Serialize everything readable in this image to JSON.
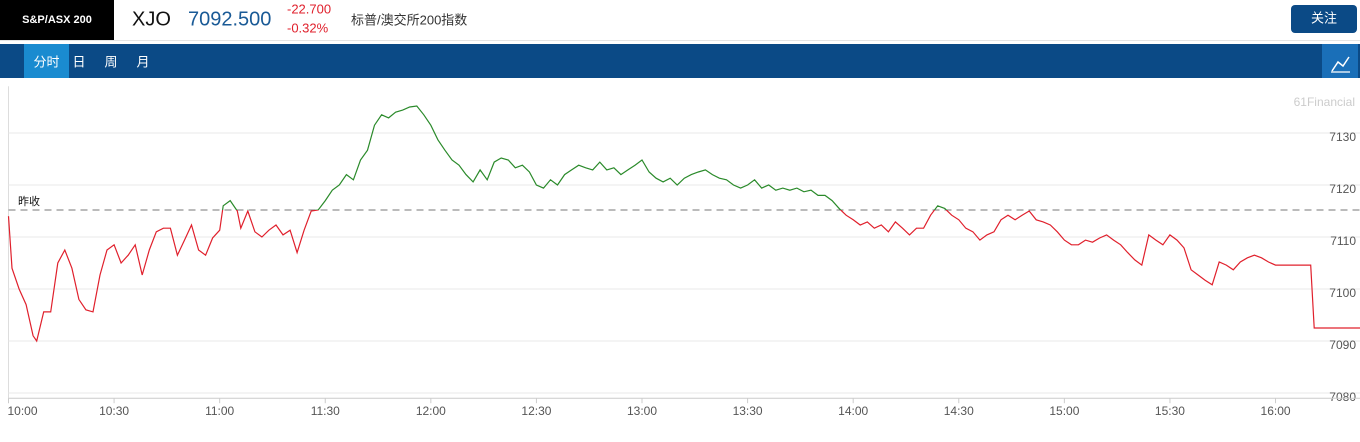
{
  "header": {
    "index_name": "S&P/ASX 200",
    "symbol": "XJO",
    "price": "7092.500",
    "change": "-22.700",
    "change_pct": "-0.32%",
    "description": "标普/澳交所200指数",
    "follow_button": "关注"
  },
  "tabs": [
    "分时",
    "日",
    "周",
    "月"
  ],
  "watermark": "61Financial",
  "chart_data": {
    "type": "line",
    "reference_label": "昨收",
    "prev_close": 7115.2,
    "up_color": "#2a8a2a",
    "down_color": "#e0202c",
    "xlim": [
      "10:00",
      "16:24"
    ],
    "xticks": [
      "10:00",
      "10:30",
      "11:00",
      "11:30",
      "12:00",
      "12:30",
      "13:00",
      "13:30",
      "14:00",
      "14:30",
      "15:00",
      "15:30",
      "16:00"
    ],
    "ylim": [
      7079,
      7139
    ],
    "yticks": [
      7080,
      7090,
      7100,
      7110,
      7120,
      7130
    ],
    "grid": true,
    "x": [
      "10:00",
      "10:01",
      "10:03",
      "10:05",
      "10:07",
      "10:08",
      "10:10",
      "10:12",
      "10:14",
      "10:16",
      "10:18",
      "10:20",
      "10:22",
      "10:24",
      "10:26",
      "10:28",
      "10:30",
      "10:32",
      "10:34",
      "10:36",
      "10:38",
      "10:40",
      "10:42",
      "10:44",
      "10:46",
      "10:48",
      "10:50",
      "10:52",
      "10:54",
      "10:56",
      "10:58",
      "11:00",
      "11:01",
      "11:03",
      "11:05",
      "11:06",
      "11:08",
      "11:10",
      "11:12",
      "11:14",
      "11:16",
      "11:18",
      "11:20",
      "11:22",
      "11:24",
      "11:26",
      "11:28",
      "11:30",
      "11:32",
      "11:34",
      "11:36",
      "11:38",
      "11:40",
      "11:42",
      "11:44",
      "11:46",
      "11:48",
      "11:50",
      "11:52",
      "11:54",
      "11:56",
      "11:58",
      "12:00",
      "12:02",
      "12:04",
      "12:06",
      "12:08",
      "12:10",
      "12:12",
      "12:14",
      "12:16",
      "12:18",
      "12:20",
      "12:22",
      "12:24",
      "12:26",
      "12:28",
      "12:30",
      "12:32",
      "12:34",
      "12:36",
      "12:38",
      "12:40",
      "12:42",
      "12:44",
      "12:46",
      "12:48",
      "12:50",
      "12:52",
      "12:54",
      "12:56",
      "12:58",
      "13:00",
      "13:02",
      "13:04",
      "13:06",
      "13:08",
      "13:10",
      "13:12",
      "13:14",
      "13:16",
      "13:18",
      "13:20",
      "13:22",
      "13:24",
      "13:26",
      "13:28",
      "13:30",
      "13:32",
      "13:34",
      "13:36",
      "13:38",
      "13:40",
      "13:42",
      "13:44",
      "13:46",
      "13:48",
      "13:50",
      "13:52",
      "13:54",
      "13:56",
      "13:58",
      "14:00",
      "14:02",
      "14:04",
      "14:06",
      "14:08",
      "14:10",
      "14:12",
      "14:14",
      "14:16",
      "14:18",
      "14:20",
      "14:22",
      "14:24",
      "14:26",
      "14:28",
      "14:30",
      "14:32",
      "14:34",
      "14:36",
      "14:38",
      "14:40",
      "14:42",
      "14:44",
      "14:46",
      "14:48",
      "14:50",
      "14:52",
      "14:54",
      "14:56",
      "14:58",
      "15:00",
      "15:02",
      "15:04",
      "15:06",
      "15:08",
      "15:10",
      "15:12",
      "15:14",
      "15:16",
      "15:18",
      "15:20",
      "15:22",
      "15:24",
      "15:26",
      "15:28",
      "15:30",
      "15:32",
      "15:34",
      "15:36",
      "15:38",
      "15:40",
      "15:42",
      "15:44",
      "15:46",
      "15:48",
      "15:50",
      "15:52",
      "15:54",
      "15:56",
      "15:58",
      "16:00",
      "16:10",
      "16:11",
      "16:24"
    ],
    "values": [
      7114,
      7104,
      7100,
      7097,
      7091,
      7090,
      7095.6,
      7095.6,
      7105,
      7107.5,
      7104,
      7098,
      7096,
      7095.6,
      7102.7,
      7107.5,
      7108.5,
      7105,
      7106.5,
      7108.5,
      7102.7,
      7107.5,
      7111,
      7111.7,
      7111.7,
      7106.5,
      7109.4,
      7112.3,
      7107.5,
      7106.5,
      7109.8,
      7111.3,
      7116,
      7117,
      7115,
      7111.7,
      7115,
      7111,
      7110,
      7111.3,
      7112.3,
      7110.4,
      7111.3,
      7107,
      7111.3,
      7115,
      7115.2,
      7117,
      7119,
      7120,
      7122,
      7121,
      7124.8,
      7126.7,
      7131.5,
      7133.5,
      7132.9,
      7134,
      7134.4,
      7135,
      7135.2,
      7133.5,
      7131.5,
      7128.7,
      7126.7,
      7124.8,
      7123.8,
      7122,
      7120.6,
      7122.9,
      7121,
      7124.4,
      7125.2,
      7124.8,
      7123.3,
      7123.8,
      7122.5,
      7120,
      7119.4,
      7121,
      7120,
      7122,
      7122.9,
      7123.8,
      7123.3,
      7122.9,
      7124.4,
      7122.9,
      7123.3,
      7122,
      7122.9,
      7123.8,
      7124.8,
      7122.5,
      7121.3,
      7120.6,
      7121.3,
      7120,
      7121.3,
      7122,
      7122.5,
      7122.9,
      7122,
      7121.3,
      7121,
      7120,
      7119.4,
      7120,
      7121,
      7119.4,
      7120,
      7119,
      7119.4,
      7119,
      7119.4,
      7118.7,
      7119,
      7118,
      7118,
      7117,
      7115.5,
      7114.2,
      7113.3,
      7112.3,
      7112.9,
      7111.7,
      7112.3,
      7111,
      7112.9,
      7111.7,
      7110.4,
      7111.7,
      7111.7,
      7114.2,
      7116,
      7115.5,
      7114.2,
      7113.3,
      7111.7,
      7111,
      7109.4,
      7110.4,
      7111,
      7113.3,
      7114.2,
      7113.3,
      7114.2,
      7115,
      7113.3,
      7112.9,
      7112.3,
      7111,
      7109.4,
      7108.5,
      7108.5,
      7109.4,
      7109,
      7109.8,
      7110.4,
      7109.4,
      7108.5,
      7107,
      7105.6,
      7104.6,
      7110.4,
      7109.4,
      7108.5,
      7110.4,
      7109.4,
      7107.9,
      7103.7,
      7102.7,
      7101.7,
      7100.8,
      7105.2,
      7104.6,
      7103.7,
      7105.2,
      7106,
      7106.5,
      7106,
      7105.2,
      7104.6,
      7104.6,
      7092.5,
      7092.5
    ]
  }
}
